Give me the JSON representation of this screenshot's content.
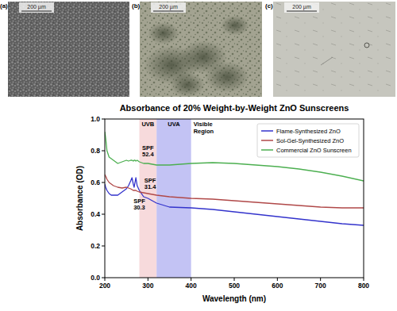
{
  "panels": [
    {
      "label": "(a)",
      "scale_bar": "200 µm"
    },
    {
      "label": "(b)",
      "scale_bar": "200 µm"
    },
    {
      "label": "(c)",
      "scale_bar": "200 µm"
    }
  ],
  "chart_data": {
    "type": "line",
    "title": "Absorbance of 20% Weight-by-Weight ZnO Sunscreens",
    "x_label": "Wavelength (nm)",
    "y_label": "Absorbance (OD)",
    "xlim": [
      200,
      800
    ],
    "ylim": [
      0,
      1
    ],
    "xticks": [
      200,
      300,
      400,
      500,
      600,
      700,
      800
    ],
    "yticks": [
      {
        "value": 0,
        "label": "0.0"
      },
      0.2,
      0.4,
      0.6,
      0.8,
      {
        "value": 1,
        "label": "1.0"
      }
    ],
    "grid": false,
    "legend": "upper right",
    "x": [
      200,
      202,
      205,
      210,
      215,
      220,
      230,
      240,
      250,
      255,
      260,
      263,
      266,
      268,
      270,
      272,
      275,
      280,
      290,
      300,
      320,
      350,
      400,
      450,
      500,
      550,
      600,
      650,
      700,
      750,
      800
    ],
    "series": [
      {
        "name": "Flame-Synthesized ZnO",
        "color": "#3333cc",
        "values": [
          0.59,
          0.57,
          0.55,
          0.53,
          0.52,
          0.52,
          0.52,
          0.54,
          0.56,
          0.58,
          0.61,
          0.63,
          0.59,
          0.57,
          0.6,
          0.63,
          0.58,
          0.55,
          0.51,
          0.5,
          0.47,
          0.445,
          0.44,
          0.43,
          0.415,
          0.4,
          0.385,
          0.37,
          0.355,
          0.34,
          0.33
        ]
      },
      {
        "name": "Sol-Gel-Synthesized ZnO",
        "color": "#b04848",
        "values": [
          0.65,
          0.64,
          0.62,
          0.6,
          0.59,
          0.58,
          0.57,
          0.565,
          0.57,
          0.565,
          0.56,
          0.555,
          0.55,
          0.55,
          0.55,
          0.55,
          0.545,
          0.54,
          0.535,
          0.53,
          0.52,
          0.51,
          0.5,
          0.495,
          0.485,
          0.475,
          0.465,
          0.455,
          0.445,
          0.44,
          0.44
        ]
      },
      {
        "name": "Commercial ZnO Sunscreen",
        "color": "#4caf50",
        "values": [
          0.92,
          0.88,
          0.8,
          0.76,
          0.75,
          0.74,
          0.72,
          0.73,
          0.74,
          0.735,
          0.74,
          0.74,
          0.735,
          0.74,
          0.74,
          0.735,
          0.74,
          0.73,
          0.72,
          0.72,
          0.71,
          0.71,
          0.72,
          0.725,
          0.72,
          0.71,
          0.7,
          0.685,
          0.665,
          0.64,
          0.61
        ]
      }
    ],
    "regions": [
      {
        "label": "UVB",
        "from": 280,
        "to": 320,
        "color": "#f6d3d6"
      },
      {
        "label": "UVA",
        "from": 320,
        "to": 400,
        "color": "#b8b8f2"
      },
      {
        "label": "Visible Region",
        "from": 400,
        "to": 800
      }
    ],
    "annotations": [
      {
        "text": "SPF 52.4",
        "x": 300,
        "y": 0.765
      },
      {
        "text": "SPF 31.4",
        "x": 305,
        "y": 0.56
      },
      {
        "text": "SPF 30.3",
        "x": 280,
        "y": 0.43
      }
    ]
  }
}
